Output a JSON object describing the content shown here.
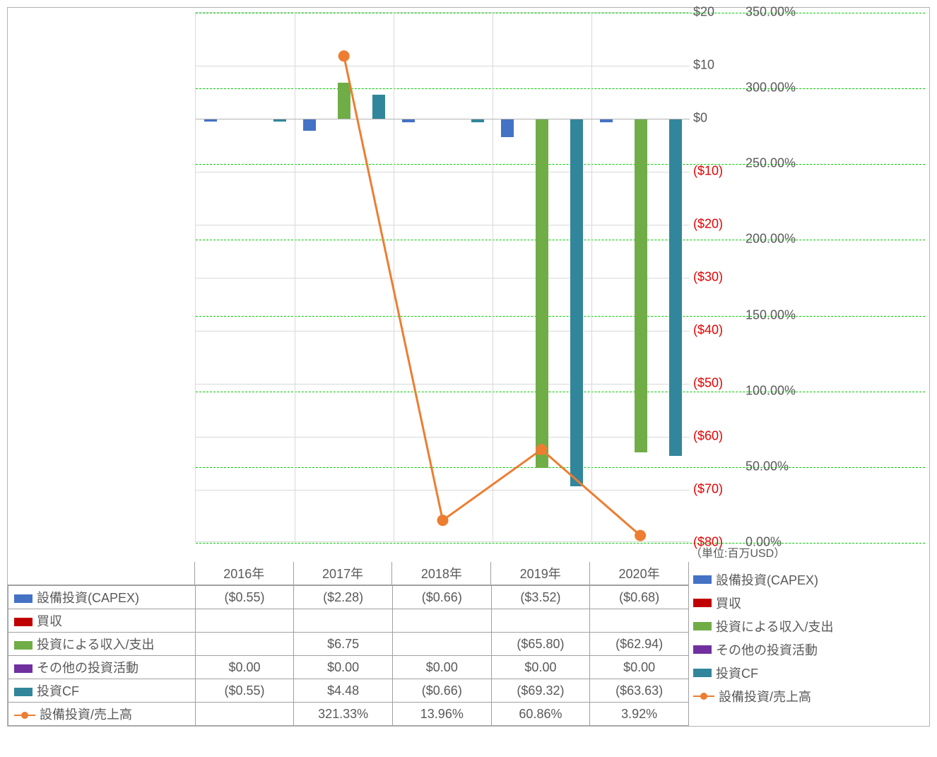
{
  "unit_note": "（単位:百万USD）",
  "colors": {
    "series": {
      "capex": "#4472c4",
      "acquisition": "#c00000",
      "invest_io": "#70ad47",
      "other": "#7030a0",
      "invest_cf": "#31869b",
      "ratio": "#ed7d31"
    },
    "grid": "#d9d9d9",
    "grid_green": "#00cc00",
    "border": "#a0a0a0",
    "neg_text": "#e80000",
    "text": "#595959"
  },
  "years": [
    "2016年",
    "2017年",
    "2018年",
    "2019年",
    "2020年"
  ],
  "left_axis": {
    "min": -80,
    "max": 20,
    "step": 10
  },
  "right_axis": {
    "min": 0,
    "max": 350,
    "step": 50
  },
  "left_ticks": [
    {
      "v": 20,
      "t": "$20"
    },
    {
      "v": 10,
      "t": "$10"
    },
    {
      "v": 0,
      "t": "$0"
    },
    {
      "v": -10,
      "t": "($10)"
    },
    {
      "v": -20,
      "t": "($20)"
    },
    {
      "v": -30,
      "t": "($30)"
    },
    {
      "v": -40,
      "t": "($40)"
    },
    {
      "v": -50,
      "t": "($50)"
    },
    {
      "v": -60,
      "t": "($60)"
    },
    {
      "v": -70,
      "t": "($70)"
    },
    {
      "v": -80,
      "t": "($80)"
    }
  ],
  "right_ticks": [
    {
      "v": 350,
      "t": "350.00%"
    },
    {
      "v": 300,
      "t": "300.00%"
    },
    {
      "v": 250,
      "t": "250.00%"
    },
    {
      "v": 200,
      "t": "200.00%"
    },
    {
      "v": 150,
      "t": "150.00%"
    },
    {
      "v": 100,
      "t": "100.00%"
    },
    {
      "v": 50,
      "t": "50.00%"
    },
    {
      "v": 0,
      "t": "0.00%"
    }
  ],
  "series": {
    "capex": {
      "label": "設備投資(CAPEX)",
      "values": [
        -0.55,
        -2.28,
        -0.66,
        -3.52,
        -0.68
      ],
      "display": [
        "($0.55)",
        "($2.28)",
        "($0.66)",
        "($3.52)",
        "($0.68)"
      ]
    },
    "acquisition": {
      "label": "買収",
      "values": [
        null,
        null,
        null,
        null,
        null
      ],
      "display": [
        "",
        "",
        "",
        "",
        ""
      ]
    },
    "invest_io": {
      "label": "投資による収入/支出",
      "values": [
        null,
        6.75,
        null,
        -65.8,
        -62.94
      ],
      "display": [
        "",
        "$6.75",
        "",
        "($65.80)",
        "($62.94)"
      ]
    },
    "other": {
      "label": "その他の投資活動",
      "values": [
        0,
        0,
        0,
        0,
        0
      ],
      "display": [
        "$0.00",
        "$0.00",
        "$0.00",
        "$0.00",
        "$0.00"
      ]
    },
    "invest_cf": {
      "label": "投資CF",
      "values": [
        -0.55,
        4.48,
        -0.66,
        -69.32,
        -63.63
      ],
      "display": [
        "($0.55)",
        "$4.48",
        "($0.66)",
        "($69.32)",
        "($63.63)"
      ]
    },
    "ratio": {
      "label": "設備投資/売上高",
      "values": [
        null,
        321.33,
        13.96,
        60.86,
        3.92
      ],
      "display": [
        "",
        "321.33%",
        "13.96%",
        "60.86%",
        "3.92%"
      ]
    }
  },
  "row_order": [
    "capex",
    "acquisition",
    "invest_io",
    "other",
    "invest_cf",
    "ratio"
  ]
}
